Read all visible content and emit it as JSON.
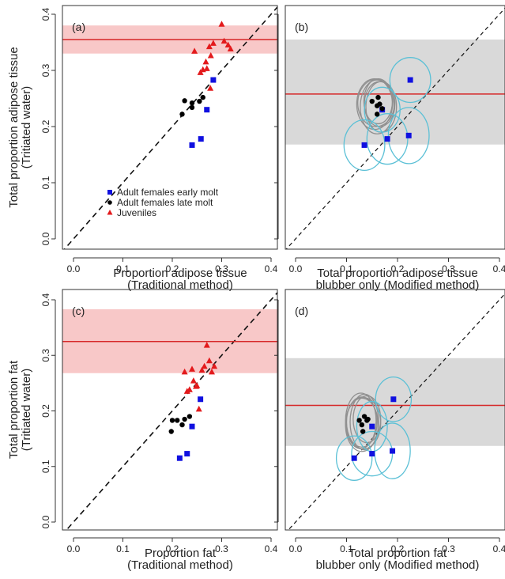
{
  "chart_data": [
    {
      "id": "a",
      "type": "scatter",
      "panel_label": "(a)",
      "xlabel": [
        "Proportion adipose tissue",
        "(Traditional method)"
      ],
      "ylabel": [
        "Total proportion adipose tissue",
        "(Tritiated water)"
      ],
      "xlim": [
        0,
        0.4
      ],
      "ylim": [
        0,
        0.4
      ],
      "xticks": [
        "0.0",
        "0.1",
        "0.2",
        "0.3",
        "0.4"
      ],
      "yticks": [
        "0.0",
        "0.1",
        "0.2",
        "0.3",
        "0.4"
      ],
      "ref_line": {
        "value": 0.355,
        "color": "#d62728"
      },
      "ref_band": {
        "lower": 0.33,
        "upper": 0.38,
        "color": "#f8c8c8"
      },
      "legend": {
        "position": "bottom-left",
        "entries": [
          {
            "label": "Adult females early molt",
            "marker": "square",
            "color": "#1010e0"
          },
          {
            "label": "Adult females late molt",
            "marker": "circle",
            "color": "#000000"
          },
          {
            "label": "Juveniles",
            "marker": "triangle",
            "color": "#e31a1c"
          }
        ]
      },
      "series": [
        {
          "group": "early",
          "marker": "square",
          "color": "#1010e0",
          "points": [
            [
              0.24,
              0.167
            ],
            [
              0.258,
              0.178
            ],
            [
              0.27,
              0.23
            ],
            [
              0.283,
              0.283
            ]
          ]
        },
        {
          "group": "late",
          "marker": "circle",
          "color": "#000000",
          "points": [
            [
              0.22,
              0.222
            ],
            [
              0.225,
              0.246
            ],
            [
              0.24,
              0.242
            ],
            [
              0.24,
              0.234
            ],
            [
              0.255,
              0.245
            ],
            [
              0.262,
              0.252
            ]
          ]
        },
        {
          "group": "juv",
          "marker": "triangle",
          "color": "#e31a1c",
          "points": [
            [
              0.245,
              0.334
            ],
            [
              0.257,
              0.296
            ],
            [
              0.262,
              0.301
            ],
            [
              0.268,
              0.315
            ],
            [
              0.27,
              0.303
            ],
            [
              0.275,
              0.342
            ],
            [
              0.278,
              0.326
            ],
            [
              0.277,
              0.268
            ],
            [
              0.283,
              0.348
            ],
            [
              0.3,
              0.382
            ],
            [
              0.305,
              0.352
            ],
            [
              0.313,
              0.345
            ],
            [
              0.318,
              0.338
            ]
          ]
        }
      ]
    },
    {
      "id": "b",
      "type": "scatter",
      "panel_label": "(b)",
      "xlabel": [
        "Total proportion adipose tissue",
        "blubber only (Modified method)"
      ],
      "ylabel": [],
      "xlim": [
        0,
        0.4
      ],
      "ylim": [
        0,
        0.4
      ],
      "xticks": [
        "0.0",
        "0.1",
        "0.2",
        "0.3",
        "0.4"
      ],
      "yticks": [
        "0.0",
        "0.1",
        "0.2",
        "0.3",
        "0.4"
      ],
      "ref_line": {
        "value": 0.258,
        "color": "#d62728"
      },
      "ref_band": {
        "lower": 0.168,
        "upper": 0.355,
        "color": "#d9d9d9"
      },
      "series": [
        {
          "group": "early",
          "marker": "square",
          "color": "#1010e0",
          "points": [
            [
              0.135,
              0.167
            ],
            [
              0.17,
              0.23
            ],
            [
              0.18,
              0.178
            ],
            [
              0.225,
              0.283
            ],
            [
              0.222,
              0.184
            ]
          ]
        },
        {
          "group": "late",
          "marker": "circle",
          "color": "#000000",
          "points": [
            [
              0.15,
              0.245
            ],
            [
              0.16,
              0.237
            ],
            [
              0.162,
              0.252
            ],
            [
              0.165,
              0.24
            ],
            [
              0.16,
              0.222
            ],
            [
              0.17,
              0.232
            ]
          ]
        }
      ],
      "ellipses": [
        {
          "color": "#909090",
          "items": [
            [
              0.155,
              0.24,
              0.035,
              0.045
            ],
            [
              0.165,
              0.24,
              0.03,
              0.04
            ],
            [
              0.16,
              0.235,
              0.033,
              0.048
            ],
            [
              0.162,
              0.245,
              0.028,
              0.04
            ],
            [
              0.168,
              0.235,
              0.03,
              0.045
            ],
            [
              0.158,
              0.242,
              0.036,
              0.042
            ]
          ]
        },
        {
          "color": "#5bc0d6",
          "items": [
            [
              0.135,
              0.167,
              0.04,
              0.045
            ],
            [
              0.17,
              0.23,
              0.035,
              0.04
            ],
            [
              0.18,
              0.178,
              0.04,
              0.045
            ],
            [
              0.225,
              0.283,
              0.04,
              0.04
            ],
            [
              0.222,
              0.184,
              0.04,
              0.05
            ]
          ]
        }
      ]
    },
    {
      "id": "c",
      "type": "scatter",
      "panel_label": "(c)",
      "xlabel": [
        "Proportion fat",
        "(Traditional method)"
      ],
      "ylabel": [
        "Total proportion fat",
        "(Tritiated water)"
      ],
      "xlim": [
        0,
        0.4
      ],
      "ylim": [
        0,
        0.4
      ],
      "xticks": [
        "0.0",
        "0.1",
        "0.2",
        "0.3",
        "0.4"
      ],
      "yticks": [
        "0.0",
        "0.1",
        "0.2",
        "0.3",
        "0.4"
      ],
      "ref_line": {
        "value": 0.325,
        "color": "#d62728"
      },
      "ref_band": {
        "lower": 0.268,
        "upper": 0.383,
        "color": "#f8c8c8"
      },
      "series": [
        {
          "group": "early",
          "marker": "square",
          "color": "#1010e0",
          "points": [
            [
              0.215,
              0.115
            ],
            [
              0.23,
              0.123
            ],
            [
              0.24,
              0.172
            ],
            [
              0.257,
              0.221
            ]
          ]
        },
        {
          "group": "late",
          "marker": "circle",
          "color": "#000000",
          "points": [
            [
              0.198,
              0.163
            ],
            [
              0.2,
              0.183
            ],
            [
              0.21,
              0.183
            ],
            [
              0.22,
              0.175
            ],
            [
              0.225,
              0.185
            ],
            [
              0.235,
              0.19
            ]
          ]
        },
        {
          "group": "juv",
          "marker": "triangle",
          "color": "#e31a1c",
          "points": [
            [
              0.225,
              0.27
            ],
            [
              0.23,
              0.235
            ],
            [
              0.235,
              0.238
            ],
            [
              0.24,
              0.275
            ],
            [
              0.243,
              0.254
            ],
            [
              0.248,
              0.244
            ],
            [
              0.25,
              0.245
            ],
            [
              0.254,
              0.203
            ],
            [
              0.26,
              0.273
            ],
            [
              0.265,
              0.28
            ],
            [
              0.27,
              0.318
            ],
            [
              0.275,
              0.29
            ],
            [
              0.28,
              0.27
            ],
            [
              0.285,
              0.28
            ]
          ]
        }
      ]
    },
    {
      "id": "d",
      "type": "scatter",
      "panel_label": "(d)",
      "xlabel": [
        "Total proportion fat",
        "blubber only (Modified method)"
      ],
      "ylabel": [],
      "xlim": [
        0,
        0.4
      ],
      "ylim": [
        0,
        0.4
      ],
      "xticks": [
        "0.0",
        "0.1",
        "0.2",
        "0.3",
        "0.4"
      ],
      "yticks": [
        "0.0",
        "0.1",
        "0.2",
        "0.3",
        "0.4"
      ],
      "ref_line": {
        "value": 0.21,
        "color": "#d62728"
      },
      "ref_band": {
        "lower": 0.137,
        "upper": 0.295,
        "color": "#d9d9d9"
      },
      "series": [
        {
          "group": "early",
          "marker": "square",
          "color": "#1010e0",
          "points": [
            [
              0.115,
              0.115
            ],
            [
              0.15,
              0.172
            ],
            [
              0.15,
              0.123
            ],
            [
              0.19,
              0.128
            ],
            [
              0.192,
              0.221
            ]
          ]
        },
        {
          "group": "late",
          "marker": "circle",
          "color": "#000000",
          "points": [
            [
              0.125,
              0.183
            ],
            [
              0.13,
              0.175
            ],
            [
              0.132,
              0.163
            ],
            [
              0.135,
              0.19
            ],
            [
              0.14,
              0.183
            ],
            [
              0.142,
              0.185
            ]
          ]
        }
      ],
      "ellipses": [
        {
          "color": "#909090",
          "items": [
            [
              0.13,
              0.18,
              0.03,
              0.045
            ],
            [
              0.135,
              0.18,
              0.028,
              0.05
            ],
            [
              0.13,
              0.175,
              0.032,
              0.048
            ],
            [
              0.14,
              0.185,
              0.027,
              0.042
            ],
            [
              0.133,
              0.178,
              0.034,
              0.046
            ],
            [
              0.128,
              0.182,
              0.03,
              0.05
            ]
          ]
        },
        {
          "color": "#5bc0d6",
          "items": [
            [
              0.115,
              0.115,
              0.035,
              0.04
            ],
            [
              0.15,
              0.172,
              0.03,
              0.045
            ],
            [
              0.15,
              0.123,
              0.04,
              0.04
            ],
            [
              0.19,
              0.128,
              0.035,
              0.05
            ],
            [
              0.192,
              0.221,
              0.035,
              0.04
            ]
          ]
        }
      ]
    }
  ]
}
